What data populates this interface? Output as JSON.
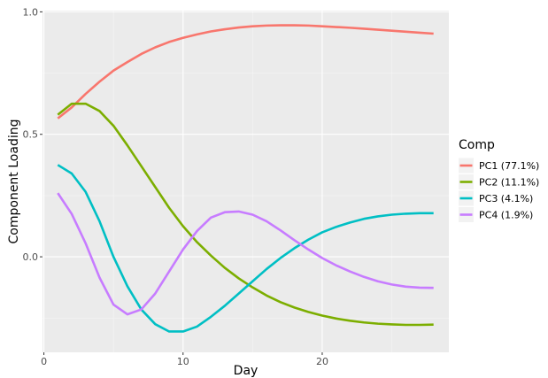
{
  "chart_data": {
    "type": "line",
    "xlabel": "Day",
    "ylabel": "Component Loading",
    "xlim": [
      -0.1,
      29.1
    ],
    "ylim": [
      -0.39,
      1.005
    ],
    "x_ticks": [
      0,
      10,
      20
    ],
    "y_ticks": [
      0.0,
      0.5,
      1.0
    ],
    "x_tick_labels": [
      "0",
      "10",
      "20"
    ],
    "y_tick_labels": [
      "0.0",
      "0.5",
      "1.0"
    ],
    "grid": true,
    "legend_title": "Comp",
    "legend_position": "right",
    "series": [
      {
        "name": "PC1 (77.1%)",
        "color": "#F8766D",
        "x": [
          1,
          2,
          3,
          4,
          5,
          6,
          7,
          8,
          9,
          10,
          11,
          12,
          13,
          14,
          15,
          16,
          17,
          18,
          19,
          20,
          21,
          22,
          23,
          24,
          25,
          26,
          27,
          28
        ],
        "y": [
          0.565,
          0.61,
          0.665,
          0.715,
          0.76,
          0.795,
          0.828,
          0.855,
          0.877,
          0.894,
          0.908,
          0.92,
          0.929,
          0.936,
          0.941,
          0.944,
          0.945,
          0.945,
          0.944,
          0.941,
          0.938,
          0.935,
          0.931,
          0.927,
          0.923,
          0.919,
          0.915,
          0.911
        ]
      },
      {
        "name": "PC2 (11.1%)",
        "color": "#7CAE00",
        "x": [
          1,
          2,
          3,
          4,
          5,
          6,
          7,
          8,
          9,
          10,
          11,
          12,
          13,
          14,
          15,
          16,
          17,
          18,
          19,
          20,
          21,
          22,
          23,
          24,
          25,
          26,
          27,
          28
        ],
        "y": [
          0.58,
          0.625,
          0.625,
          0.595,
          0.535,
          0.455,
          0.37,
          0.285,
          0.2,
          0.125,
          0.06,
          0.005,
          -0.045,
          -0.088,
          -0.125,
          -0.158,
          -0.185,
          -0.207,
          -0.225,
          -0.24,
          -0.252,
          -0.261,
          -0.268,
          -0.273,
          -0.276,
          -0.278,
          -0.278,
          -0.277
        ]
      },
      {
        "name": "PC3 (4.1%)",
        "color": "#00BFC4",
        "x": [
          1,
          2,
          3,
          4,
          5,
          6,
          7,
          8,
          9,
          10,
          11,
          12,
          13,
          14,
          15,
          16,
          17,
          18,
          19,
          20,
          21,
          22,
          23,
          24,
          25,
          26,
          27,
          28
        ],
        "y": [
          0.375,
          0.34,
          0.265,
          0.145,
          0.0,
          -0.12,
          -0.215,
          -0.275,
          -0.305,
          -0.305,
          -0.285,
          -0.245,
          -0.2,
          -0.15,
          -0.1,
          -0.05,
          -0.005,
          0.035,
          0.07,
          0.1,
          0.122,
          0.14,
          0.155,
          0.165,
          0.172,
          0.176,
          0.178,
          0.178
        ]
      },
      {
        "name": "PC4 (1.9%)",
        "color": "#C77CFF",
        "x": [
          1,
          2,
          3,
          4,
          5,
          6,
          7,
          8,
          9,
          10,
          11,
          12,
          13,
          14,
          15,
          16,
          17,
          18,
          19,
          20,
          21,
          22,
          23,
          24,
          25,
          26,
          27,
          28
        ],
        "y": [
          0.26,
          0.175,
          0.055,
          -0.085,
          -0.195,
          -0.235,
          -0.215,
          -0.15,
          -0.06,
          0.03,
          0.105,
          0.16,
          0.182,
          0.185,
          0.172,
          0.145,
          0.108,
          0.068,
          0.03,
          -0.005,
          -0.035,
          -0.06,
          -0.082,
          -0.1,
          -0.113,
          -0.122,
          -0.126,
          -0.127
        ]
      }
    ]
  },
  "colors": {
    "panel_background": "#EBEBEB",
    "grid_major": "#FFFFFF",
    "grid_minor": "#F5F5F5"
  }
}
